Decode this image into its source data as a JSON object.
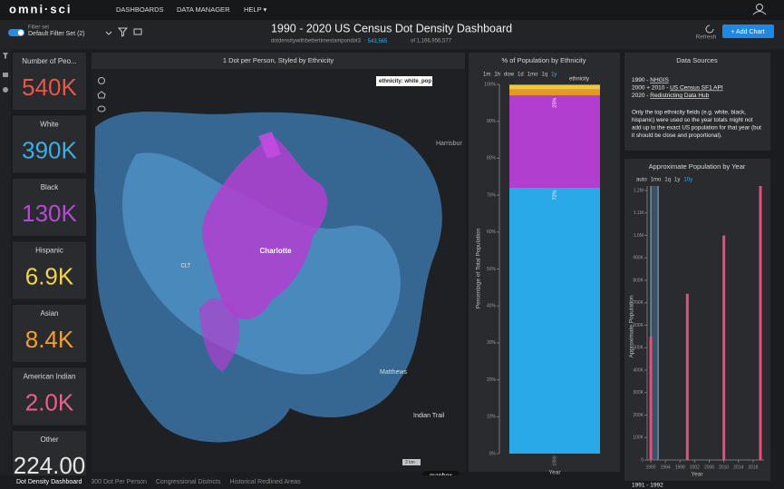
{
  "nav": {
    "logo": "omni·sci",
    "links": [
      "DASHBOARDS",
      "DATA MANAGER",
      "HELP ▾"
    ]
  },
  "header": {
    "filter_label": "Filter set",
    "filter_name": "Default Filter Set (2)",
    "title": "1990 - 2020 US Census Dot Density Dashboard",
    "table": "dotdensitywithbettertimestampondot3",
    "filtered": "543,565",
    "total": "of 1,166,956,577",
    "refresh": "Refresh",
    "add_chart": "+ Add Chart"
  },
  "kpis": [
    {
      "label": "Number of Peo...",
      "value": "540K",
      "color": "#e8574a"
    },
    {
      "label": "White",
      "value": "390K",
      "color": "#3aaee8"
    },
    {
      "label": "Black",
      "value": "130K",
      "color": "#b648d6"
    },
    {
      "label": "Hispanic",
      "value": "6.9K",
      "color": "#f2d24a"
    },
    {
      "label": "Asian",
      "value": "8.4K",
      "color": "#f0a030"
    },
    {
      "label": "American Indian",
      "value": "2.0K",
      "color": "#ec5f8a"
    },
    {
      "label": "Other",
      "value": "224.00",
      "color": "#e6e6e6"
    }
  ],
  "map": {
    "title": "1 Dot per Person, Styled by Ethnicity",
    "legend": "ethnicity: white_pop",
    "places": [
      "Charlotte",
      "CLT",
      "Harrisbur",
      "Matthews",
      "Indian Trail"
    ],
    "scale": "2 km",
    "attribution": "mapbox"
  },
  "ethnicity_chart": {
    "type": "bar",
    "title": "% of Population by Ethnicity",
    "time_buttons": [
      "1m",
      "1h",
      "dow",
      "1d",
      "1mo",
      "1q",
      "1y"
    ],
    "legend_title": "ethnicity",
    "ylabel": "Percentage of Total Population",
    "xlabel": "Year",
    "categories": [
      "1990"
    ],
    "series": [
      {
        "color": "#29a9e8",
        "values": [
          72
        ],
        "value_labels": [
          "72%"
        ]
      },
      {
        "color": "#b23ed0",
        "values": [
          25
        ],
        "value_labels": [
          "25%"
        ]
      },
      {
        "color": "#e8962a",
        "values": [
          1.6
        ]
      },
      {
        "color": "#f0c83c",
        "values": [
          1.3
        ]
      }
    ],
    "ylim": [
      0,
      100
    ],
    "yticks": [
      {
        "value": 0,
        "label": "0%"
      },
      {
        "value": 10,
        "label": "10%"
      },
      {
        "value": 20,
        "label": "20%"
      },
      {
        "value": 30,
        "label": "30%"
      },
      {
        "value": 40,
        "label": "40%"
      },
      {
        "value": 50,
        "label": "50%"
      },
      {
        "value": 60,
        "label": "60%"
      },
      {
        "value": 70,
        "label": "70%"
      },
      {
        "value": 80,
        "label": "80%"
      },
      {
        "value": 90,
        "label": "90%"
      },
      {
        "value": 100,
        "label": "100%"
      }
    ]
  },
  "data_sources": {
    "title": "Data Sources",
    "lines": [
      {
        "prefix": "1990 - ",
        "link": "NHGIS"
      },
      {
        "prefix": "2000 + 2010 - ",
        "link": "US Census SF1 API"
      },
      {
        "prefix": "2020 - ",
        "link": "Redistricting Data Hub"
      }
    ],
    "note": [
      "Only the top ethnicity fields (e.g. white, black,",
      "hispanic) were used so the year totals might not",
      "add up to the exact US population for that year (but",
      "it should be close and proportional)."
    ]
  },
  "population_chart": {
    "type": "bar",
    "title": "Approximate Population by Year",
    "time_buttons": [
      "auto",
      "1mo",
      "1q",
      "1y",
      "10y"
    ],
    "ylabel": "Approximate Population",
    "xlabel": "Year",
    "x": [
      1990,
      2000,
      2010,
      2020
    ],
    "values": [
      550000,
      740000,
      1000000,
      1220000
    ],
    "color": "#e3507c",
    "xlim": [
      1989,
      2021
    ],
    "xticks": [
      1990,
      1994,
      1998,
      2002,
      2006,
      2010,
      2014,
      2018
    ],
    "ylim": [
      0,
      1220000
    ],
    "yticks": [
      0,
      {
        "value": 100000,
        "label": "100K"
      },
      {
        "value": 200000,
        "label": "200K"
      },
      {
        "value": 300000,
        "label": "300K"
      },
      {
        "value": 400000,
        "label": "400K"
      },
      {
        "value": 500000,
        "label": "500K"
      },
      {
        "value": 600000,
        "label": "600K"
      },
      {
        "value": 700000,
        "label": "700K"
      },
      {
        "value": 800000,
        "label": "800K"
      },
      {
        "value": 900000,
        "label": "900K"
      },
      {
        "value": 1000000,
        "label": "1.0M"
      },
      {
        "value": 1100000,
        "label": "1.1M"
      },
      {
        "value": 1200000,
        "label": "1.2M"
      }
    ],
    "brush": [
      1990,
      1992
    ],
    "brush_label": "1991 - 1992"
  },
  "tabs": [
    "Dot Density Dashboard",
    "300 Dot Per Person",
    "Congressional Districts",
    "Historical Redlined Areas"
  ]
}
